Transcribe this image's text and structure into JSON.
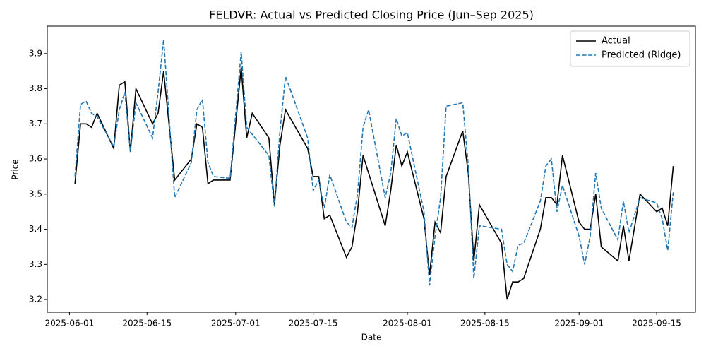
{
  "chart_data": {
    "type": "line",
    "title": "FELDVR: Actual vs Predicted Closing Price (Jun–Sep 2025)",
    "xlabel": "Date",
    "ylabel": "Price",
    "x": [
      "2025-06-02",
      "2025-06-03",
      "2025-06-04",
      "2025-06-05",
      "2025-06-06",
      "2025-06-09",
      "2025-06-10",
      "2025-06-11",
      "2025-06-12",
      "2025-06-13",
      "2025-06-16",
      "2025-06-17",
      "2025-06-18",
      "2025-06-20",
      "2025-06-23",
      "2025-06-24",
      "2025-06-25",
      "2025-06-26",
      "2025-06-27",
      "2025-06-30",
      "2025-07-02",
      "2025-07-03",
      "2025-07-04",
      "2025-07-07",
      "2025-07-08",
      "2025-07-09",
      "2025-07-10",
      "2025-07-14",
      "2025-07-15",
      "2025-07-16",
      "2025-07-17",
      "2025-07-18",
      "2025-07-21",
      "2025-07-22",
      "2025-07-23",
      "2025-07-24",
      "2025-07-25",
      "2025-07-28",
      "2025-07-29",
      "2025-07-30",
      "2025-07-31",
      "2025-08-01",
      "2025-08-04",
      "2025-08-05",
      "2025-08-06",
      "2025-08-07",
      "2025-08-08",
      "2025-08-11",
      "2025-08-12",
      "2025-08-13",
      "2025-08-14",
      "2025-08-18",
      "2025-08-19",
      "2025-08-20",
      "2025-08-21",
      "2025-08-22",
      "2025-08-25",
      "2025-08-26",
      "2025-08-27",
      "2025-08-28",
      "2025-08-29",
      "2025-09-01",
      "2025-09-02",
      "2025-09-03",
      "2025-09-04",
      "2025-09-05",
      "2025-09-08",
      "2025-09-09",
      "2025-09-10",
      "2025-09-12",
      "2025-09-15",
      "2025-09-16",
      "2025-09-17",
      "2025-09-18"
    ],
    "series": [
      {
        "name": "Actual",
        "color": "#000000",
        "linestyle": "solid",
        "values": [
          3.53,
          3.7,
          3.7,
          3.69,
          3.73,
          3.63,
          3.81,
          3.82,
          3.62,
          3.8,
          3.7,
          3.73,
          3.85,
          3.54,
          3.6,
          3.7,
          3.69,
          3.53,
          3.54,
          3.54,
          3.86,
          3.66,
          3.73,
          3.66,
          3.47,
          3.64,
          3.74,
          3.63,
          3.55,
          3.55,
          3.43,
          3.44,
          3.32,
          3.35,
          3.45,
          3.61,
          3.56,
          3.41,
          3.51,
          3.64,
          3.58,
          3.62,
          3.43,
          3.27,
          3.42,
          3.39,
          3.55,
          3.68,
          3.56,
          3.31,
          3.47,
          3.36,
          3.2,
          3.25,
          3.25,
          3.26,
          3.4,
          3.49,
          3.49,
          3.47,
          3.61,
          3.42,
          3.4,
          3.4,
          3.5,
          3.35,
          3.31,
          3.41,
          3.31,
          3.5,
          3.45,
          3.46,
          3.41,
          3.58
        ]
      },
      {
        "name": "Predicted (Ridge)",
        "color": "#1f77b4",
        "linestyle": "dashed",
        "values": [
          3.55,
          3.755,
          3.765,
          3.73,
          3.72,
          3.635,
          3.74,
          3.79,
          3.62,
          3.76,
          3.66,
          3.79,
          3.94,
          3.49,
          3.59,
          3.74,
          3.77,
          3.59,
          3.55,
          3.545,
          3.905,
          3.69,
          3.67,
          3.61,
          3.465,
          3.68,
          3.835,
          3.66,
          3.51,
          3.54,
          3.46,
          3.555,
          3.42,
          3.405,
          3.5,
          3.69,
          3.74,
          3.49,
          3.56,
          3.715,
          3.665,
          3.675,
          3.45,
          3.24,
          3.38,
          3.49,
          3.75,
          3.76,
          3.58,
          3.26,
          3.41,
          3.4,
          3.3,
          3.28,
          3.355,
          3.36,
          3.48,
          3.58,
          3.6,
          3.45,
          3.525,
          3.38,
          3.3,
          3.38,
          3.56,
          3.46,
          3.37,
          3.48,
          3.39,
          3.49,
          3.475,
          3.43,
          3.34,
          3.505
        ]
      }
    ],
    "xlim": [
      "2025-05-28",
      "2025-09-22"
    ],
    "xticks": [
      "2025-06-01",
      "2025-06-15",
      "2025-07-01",
      "2025-07-15",
      "2025-08-01",
      "2025-08-15",
      "2025-09-01",
      "2025-09-15"
    ],
    "ylim": [
      3.164,
      3.978
    ],
    "yticks": [
      3.2,
      3.3,
      3.4,
      3.5,
      3.6,
      3.7,
      3.8,
      3.9
    ],
    "legend": "upper right",
    "grid": false
  }
}
